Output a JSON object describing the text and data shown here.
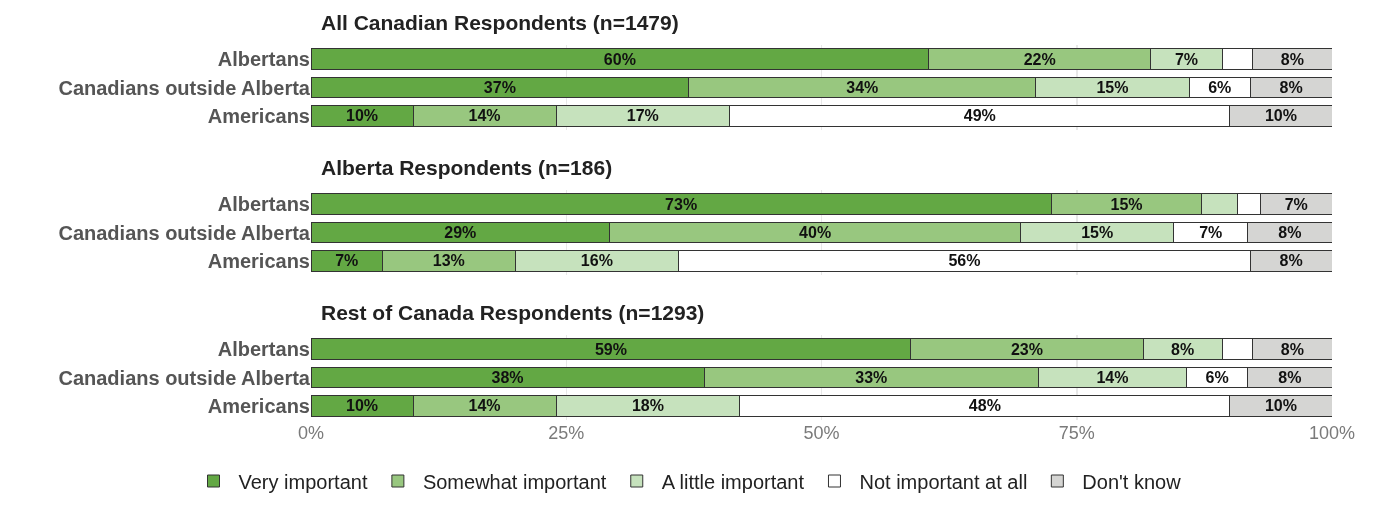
{
  "chart_data": [
    {
      "type": "bar",
      "orientation": "horizontal",
      "stacked": true,
      "title": "All Canadian Respondents (n=1479)",
      "categories": [
        "Albertans",
        "Canadians outside Alberta",
        "Americans"
      ],
      "xlim": [
        0,
        100
      ],
      "xticks": [
        {
          "value": 0,
          "label": null
        },
        {
          "value": 25,
          "label": null
        },
        {
          "value": 50,
          "label": null
        },
        {
          "value": 75,
          "label": null
        },
        {
          "value": 100,
          "label": null
        }
      ],
      "grid": "x",
      "tick_labels": "y",
      "legend": false,
      "series": [
        {
          "color": "#63a844",
          "values": [
            60.5,
            37,
            10
          ],
          "value_labels": [
            "60%",
            "37%",
            "10%"
          ]
        },
        {
          "color": "#98c77f",
          "values": [
            21.75,
            34,
            14
          ],
          "value_labels": [
            "22%",
            "34%",
            "14%"
          ]
        },
        {
          "color": "#c6e2bd",
          "values": [
            7,
            15,
            17
          ],
          "value_labels": [
            "7%",
            "15%",
            "17%"
          ]
        },
        {
          "color": "#ffffff",
          "values": [
            3,
            6,
            49
          ],
          "value_labels": [
            null,
            "6%",
            "49%"
          ]
        },
        {
          "color": "#d5d5d3",
          "values": [
            7.75,
            8,
            10
          ],
          "value_labels": [
            "8%",
            "8%",
            "10%"
          ]
        }
      ]
    },
    {
      "type": "bar",
      "orientation": "horizontal",
      "stacked": true,
      "title": "Alberta Respondents (n=186)",
      "categories": [
        "Albertans",
        "Canadians outside Alberta",
        "Americans"
      ],
      "xlim": [
        0,
        100
      ],
      "xticks": [
        {
          "value": 0,
          "label": null
        },
        {
          "value": 25,
          "label": null
        },
        {
          "value": 50,
          "label": null
        },
        {
          "value": 75,
          "label": null
        },
        {
          "value": 100,
          "label": null
        }
      ],
      "grid": "x",
      "tick_labels": "y",
      "legend": false,
      "series": [
        {
          "color": "#63a844",
          "values": [
            72.5,
            29.25,
            7
          ],
          "value_labels": [
            "73%",
            "29%",
            "7%"
          ]
        },
        {
          "color": "#98c77f",
          "values": [
            14.75,
            40.25,
            13
          ],
          "value_labels": [
            "15%",
            "40%",
            "13%"
          ]
        },
        {
          "color": "#c6e2bd",
          "values": [
            3.5,
            15,
            16
          ],
          "value_labels": [
            null,
            "15%",
            "16%"
          ]
        },
        {
          "color": "#ffffff",
          "values": [
            2.25,
            7.25,
            56
          ],
          "value_labels": [
            null,
            "7%",
            "56%"
          ]
        },
        {
          "color": "#d5d5d3",
          "values": [
            7,
            8.25,
            8
          ],
          "value_labels": [
            "7%",
            "8%",
            "8%"
          ]
        }
      ]
    },
    {
      "type": "bar",
      "orientation": "horizontal",
      "stacked": true,
      "title": "Rest of Canada Respondents (n=1293)",
      "categories": [
        "Albertans",
        "Canadians outside Alberta",
        "Americans"
      ],
      "xlim": [
        0,
        100
      ],
      "xticks": [
        {
          "value": 0,
          "label": "0%"
        },
        {
          "value": 25,
          "label": "25%"
        },
        {
          "value": 50,
          "label": "50%"
        },
        {
          "value": 75,
          "label": "75%"
        },
        {
          "value": 100,
          "label": "100%"
        }
      ],
      "grid": "x",
      "legend": "bottom",
      "series": [
        {
          "name": "Very important",
          "color": "#63a844",
          "values": [
            58.75,
            38.5,
            10
          ],
          "value_labels": [
            "59%",
            "38%",
            "10%"
          ]
        },
        {
          "name": "Somewhat important",
          "color": "#98c77f",
          "values": [
            22.75,
            32.75,
            14
          ],
          "value_labels": [
            "23%",
            "33%",
            "14%"
          ]
        },
        {
          "name": "A little important",
          "color": "#c6e2bd",
          "values": [
            7.75,
            14.5,
            18
          ],
          "value_labels": [
            "8%",
            "14%",
            "18%"
          ]
        },
        {
          "name": "Not important at all",
          "color": "#ffffff",
          "values": [
            3,
            6,
            48
          ],
          "value_labels": [
            null,
            "6%",
            "48%"
          ]
        },
        {
          "name": "Don't know",
          "color": "#d5d5d3",
          "values": [
            7.75,
            8.25,
            10
          ],
          "value_labels": [
            "8%",
            "8%",
            "10%"
          ]
        }
      ]
    }
  ]
}
